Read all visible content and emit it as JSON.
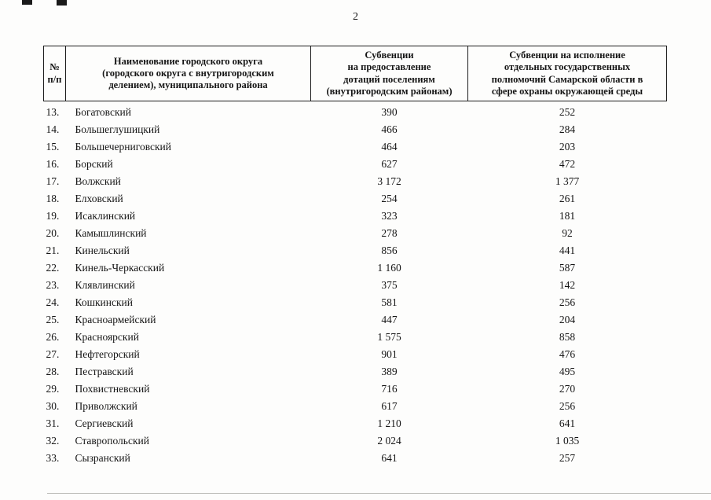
{
  "page": {
    "number": "2"
  },
  "table": {
    "headers": {
      "col_num": "№\nп/п",
      "col_name": "Наименование городского округа\n(городского округа с внутригородским\nделением), муниципального района",
      "col_subvention_dotations": "Субвенции\nна предоставление\nдотаций поселениям\n(внутригородским районам)",
      "col_subvention_ecology": "Субвенции на исполнение\nотдельных государственных\nполномочий Самарской области в\nсфере охраны окружающей среды"
    },
    "rows": [
      {
        "num": "13.",
        "name": "Богатовский",
        "v1": "390",
        "v2": "252"
      },
      {
        "num": "14.",
        "name": "Большеглушицкий",
        "v1": "466",
        "v2": "284"
      },
      {
        "num": "15.",
        "name": "Большечерниговский",
        "v1": "464",
        "v2": "203"
      },
      {
        "num": "16.",
        "name": "Борский",
        "v1": "627",
        "v2": "472"
      },
      {
        "num": "17.",
        "name": "Волжский",
        "v1": "3 172",
        "v2": "1 377"
      },
      {
        "num": "18.",
        "name": "Елховский",
        "v1": "254",
        "v2": "261"
      },
      {
        "num": "19.",
        "name": "Исаклинский",
        "v1": "323",
        "v2": "181"
      },
      {
        "num": "20.",
        "name": "Камышлинский",
        "v1": "278",
        "v2": "92"
      },
      {
        "num": "21.",
        "name": "Кинельский",
        "v1": "856",
        "v2": "441"
      },
      {
        "num": "22.",
        "name": "Кинель-Черкасский",
        "v1": "1 160",
        "v2": "587"
      },
      {
        "num": "23.",
        "name": "Клявлинский",
        "v1": "375",
        "v2": "142"
      },
      {
        "num": "24.",
        "name": "Кошкинский",
        "v1": "581",
        "v2": "256"
      },
      {
        "num": "25.",
        "name": "Красноармейский",
        "v1": "447",
        "v2": "204"
      },
      {
        "num": "26.",
        "name": "Красноярский",
        "v1": "1 575",
        "v2": "858"
      },
      {
        "num": "27.",
        "name": "Нефтегорский",
        "v1": "901",
        "v2": "476"
      },
      {
        "num": "28.",
        "name": "Пестравский",
        "v1": "389",
        "v2": "495"
      },
      {
        "num": "29.",
        "name": "Похвистневский",
        "v1": "716",
        "v2": "270"
      },
      {
        "num": "30.",
        "name": "Приволжский",
        "v1": "617",
        "v2": "256"
      },
      {
        "num": "31.",
        "name": "Сергиевский",
        "v1": "1 210",
        "v2": "641"
      },
      {
        "num": "32.",
        "name": "Ставропольский",
        "v1": "2 024",
        "v2": "1 035"
      },
      {
        "num": "33.",
        "name": "Сызранский",
        "v1": "641",
        "v2": "257"
      }
    ]
  }
}
